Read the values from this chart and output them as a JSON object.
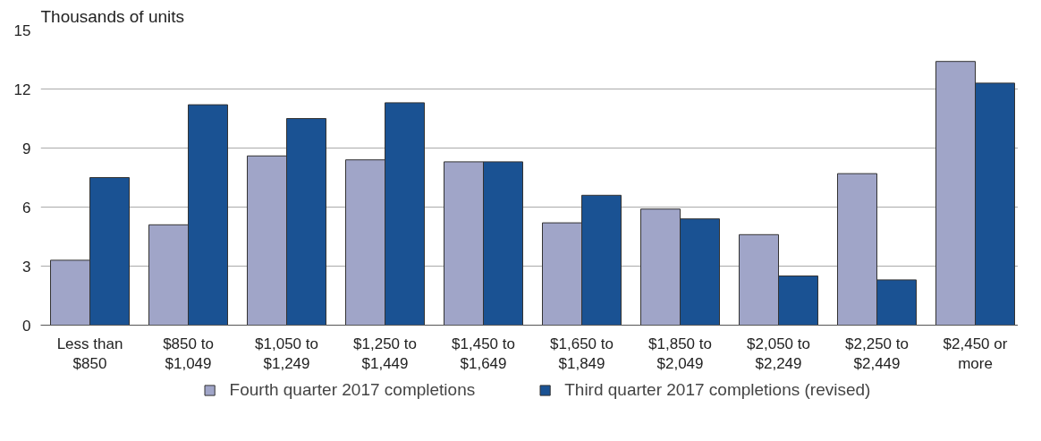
{
  "chart_data": {
    "type": "bar",
    "ylabel": "Thousands of units",
    "categories": [
      "Less than $850",
      "$850 to $1,049",
      "$1,050 to $1,249",
      "$1,250 to $1,449",
      "$1,450 to $1,649",
      "$1,650 to $1,849",
      "$1,850 to $2,049",
      "$2,050 to $2,249",
      "$2,250 to $2,449",
      "$2,450 or more"
    ],
    "series": [
      {
        "name": "Fourth quarter 2017 completions",
        "color": "#a0a5c8",
        "values": [
          3.3,
          5.1,
          8.6,
          8.4,
          8.3,
          5.2,
          5.9,
          4.6,
          7.7,
          13.4
        ]
      },
      {
        "name": "Third quarter 2017 completions (revised)",
        "color": "#1a5293",
        "values": [
          7.5,
          11.2,
          10.5,
          11.3,
          8.3,
          6.6,
          5.4,
          2.5,
          2.3,
          12.3
        ]
      }
    ],
    "ylim": [
      0,
      15
    ],
    "yticks": [
      0,
      3,
      6,
      9,
      12,
      15
    ],
    "grid": "y",
    "legend": "bottom"
  }
}
